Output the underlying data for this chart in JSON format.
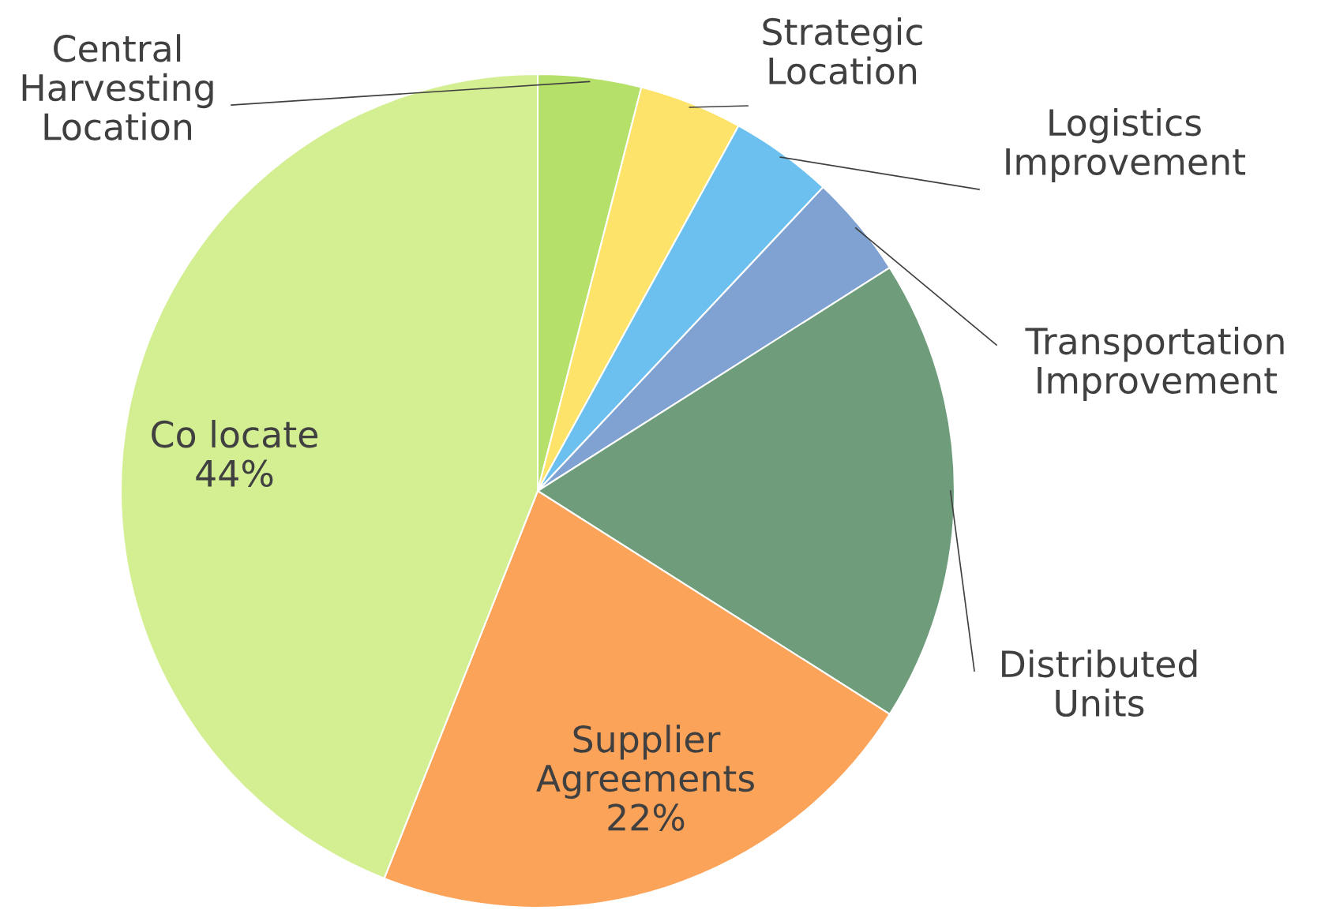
{
  "chart_data": {
    "type": "pie",
    "categories": [
      "Central\nHarvesting\nLocation",
      "Strategic\nLocation",
      "Logistics\nImprovement",
      "Transportation\nImprovement",
      "Distributed\nUnits",
      "Supplier\nAgreements",
      "Co locate"
    ],
    "values": [
      4,
      4,
      4,
      4,
      18,
      22,
      44
    ],
    "value_labels": [
      null,
      null,
      null,
      null,
      null,
      "22%",
      "44%"
    ],
    "colors": [
      "#b5e06a",
      "#fde36a",
      "#6cc0f0",
      "#7fa2d2",
      "#6f9d7c",
      "#fca35a",
      "#d3ef92"
    ]
  }
}
